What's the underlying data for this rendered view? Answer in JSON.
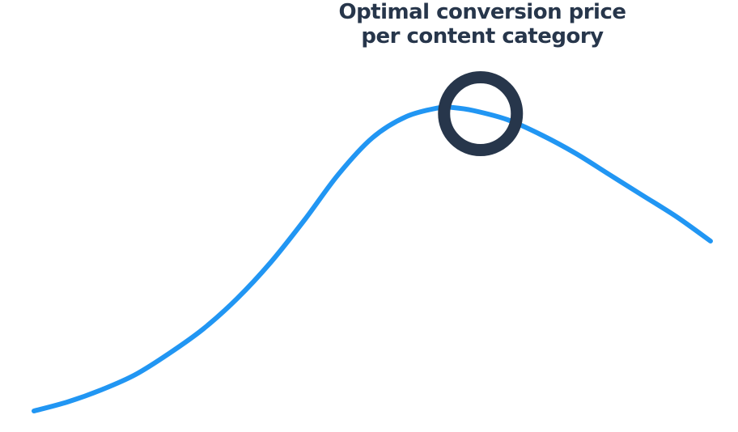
{
  "chart_data": {
    "type": "line",
    "annotation": {
      "line1": "Optimal conversion price",
      "line2": "per content category",
      "marker_x": 0.66,
      "marker_y": 0.98
    },
    "series": [
      {
        "x": [
          0.0,
          0.05,
          0.1,
          0.15,
          0.2,
          0.25,
          0.3,
          0.35,
          0.4,
          0.45,
          0.5,
          0.55,
          0.6,
          0.62,
          0.65,
          0.7,
          0.75,
          0.8,
          0.85,
          0.9,
          0.95,
          1.0
        ],
        "y": [
          0.0,
          0.03,
          0.07,
          0.12,
          0.19,
          0.27,
          0.37,
          0.49,
          0.63,
          0.78,
          0.9,
          0.97,
          1.0,
          1.0,
          0.99,
          0.96,
          0.91,
          0.85,
          0.78,
          0.71,
          0.64,
          0.56
        ]
      }
    ],
    "xlim": [
      0,
      1
    ],
    "ylim": [
      0,
      1
    ],
    "grid": false,
    "colors": {
      "line": "#2196f3",
      "marker": "#27364b",
      "title": "#27364b"
    }
  }
}
